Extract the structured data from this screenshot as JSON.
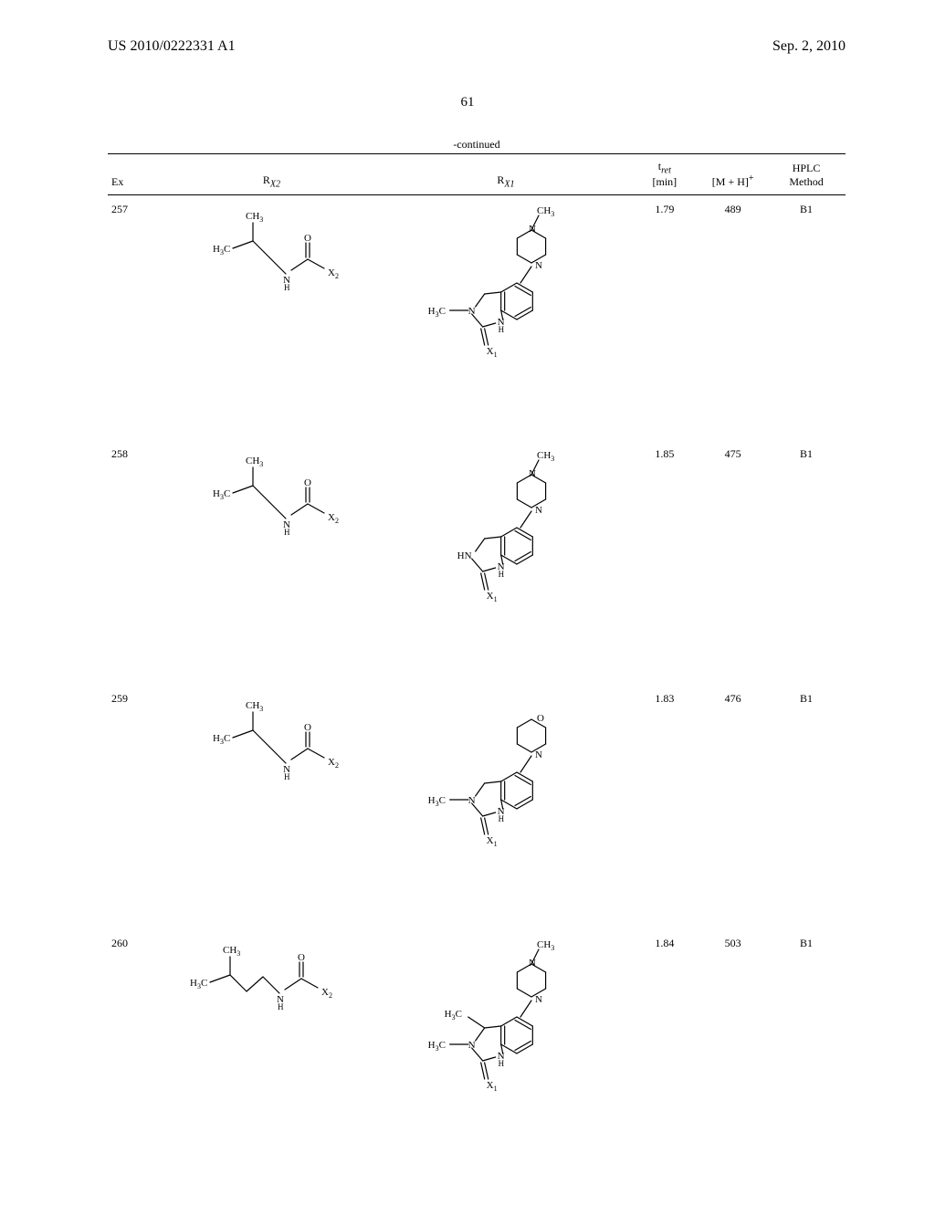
{
  "header": {
    "doc_number": "US 2010/0222331 A1",
    "date": "Sep. 2, 2010"
  },
  "page_number": "61",
  "continued": "-continued",
  "columns": {
    "ex": "Ex",
    "rx2": "R",
    "rx2_sub": "X2",
    "rx1": "R",
    "rx1_sub": "X1",
    "tret_top": "t",
    "tret_sub": "ret",
    "tret_unit": "[min]",
    "mh": "[M + H]",
    "mh_sup": "+",
    "hplc_top": "HPLC",
    "hplc_bot": "Method"
  },
  "rows": [
    {
      "ex": "257",
      "tret": "1.79",
      "mh": "489",
      "hplc": "B1",
      "rx1_variant": "nme_nme",
      "rx2_variant": "short"
    },
    {
      "ex": "258",
      "tret": "1.85",
      "mh": "475",
      "hplc": "B1",
      "rx1_variant": "nme_nh",
      "rx2_variant": "short"
    },
    {
      "ex": "259",
      "tret": "1.83",
      "mh": "476",
      "hplc": "B1",
      "rx1_variant": "morph_nme",
      "rx2_variant": "short"
    },
    {
      "ex": "260",
      "tret": "1.84",
      "mh": "503",
      "hplc": "B1",
      "rx1_variant": "nme_dime",
      "rx2_variant": "long"
    }
  ],
  "chem_labels": {
    "CH3": "CH",
    "CH3_sub": "3",
    "H3C": "H",
    "H3C_sub": "3",
    "H3C_tail": "C",
    "O": "O",
    "N": "N",
    "NH_under": "H",
    "HN": "HN",
    "X1": "X",
    "X1_sub": "1",
    "X2": "X",
    "X2_sub": "2"
  }
}
